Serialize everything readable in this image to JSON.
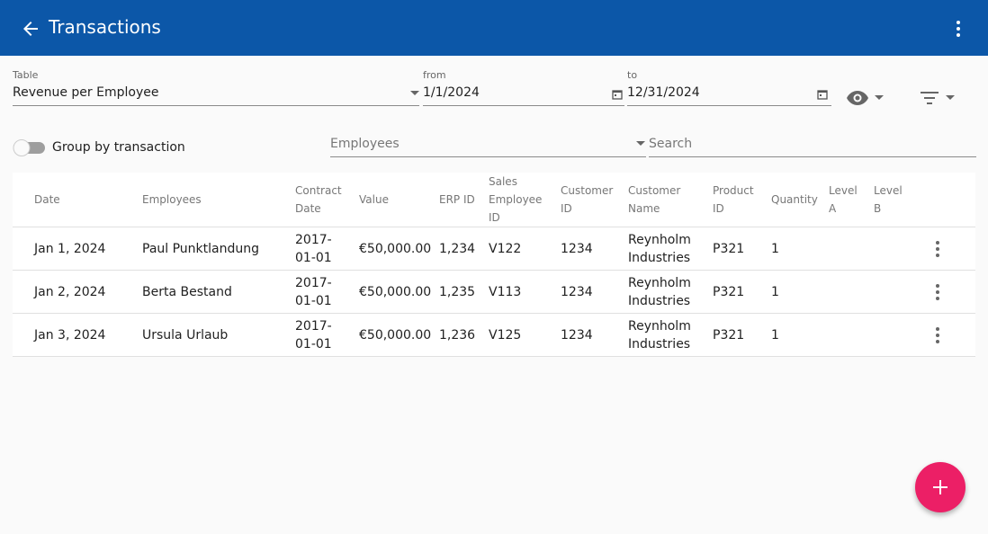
{
  "app_bar": {
    "title": "Transactions"
  },
  "filters": {
    "table_label": "Table",
    "table_value": "Revenue per Employee",
    "from_label": "from",
    "from_value": "1/1/2024",
    "to_label": "to",
    "to_value": "12/31/2024",
    "group_toggle": "Group by transaction",
    "employees_placeholder": "Employees",
    "search_placeholder": "Search"
  },
  "table": {
    "headers": [
      "Date",
      "Employees",
      "Contract Date",
      "Value",
      "ERP ID",
      "Sales Employee ID",
      "Customer ID",
      "Customer Name",
      "Product ID",
      "Quantity",
      "Level A",
      "Level B"
    ],
    "rows": [
      [
        "Jan 1, 2024",
        "Paul Punktlandung",
        "2017-01-01",
        "€50,000.00",
        "1,234",
        "V122",
        "1234",
        "Reynholm Industries",
        "P321",
        "1"
      ],
      [
        "Jan 2, 2024",
        "Berta Bestand",
        "2017-01-01",
        "€50,000.00",
        "1,235",
        "V113",
        "1234",
        "Reynholm Industries",
        "P321",
        "1"
      ],
      [
        "Jan 3, 2024",
        "Ursula Urlaub",
        "2017-01-01",
        "€50,000.00",
        "1,236",
        "V125",
        "1234",
        "Reynholm Industries",
        "P321",
        "1"
      ]
    ]
  }
}
